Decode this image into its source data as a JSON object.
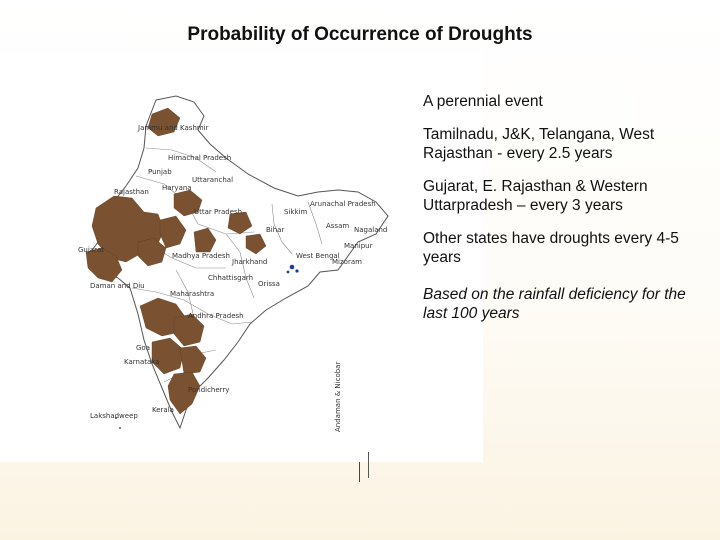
{
  "slide": {
    "title": "Probability of Occurrence of Droughts",
    "bullets": [
      "A perennial event",
      "Tamilnadu, J&K, Telangana, West Rajasthan - every 2.5 years",
      "Gujarat, E. Rajasthan &  Western Uttarpradesh – every 3 years",
      "Other states have droughts every 4-5 years"
    ],
    "note": "Based on the rainfall deficiency for the last 100 years"
  },
  "map": {
    "drought_color": "#7a5232",
    "water_color": "#1c3f8f",
    "outline_color": "#555555",
    "labels": {
      "jk": "Jammu and Kashmir",
      "hp": "Himachal Pradesh",
      "punjab": "Punjab",
      "uttaranchal": "Uttaranchal",
      "haryana": "Haryana",
      "rajasthan": "Rajasthan",
      "up": "Uttar Pradesh",
      "sikkim": "Sikkim",
      "arunachal": "Arunachal Pradesh",
      "bihar": "Bihar",
      "assam": "Assam",
      "nagaland": "Nagaland",
      "manipur": "Manipur",
      "gujarat": "Gujarat",
      "mp": "Madhya Pradesh",
      "jharkhand": "Jharkhand",
      "wb": "West Bengal",
      "mizoram": "Mizoram",
      "chhattisgarh": "Chhattisgarh",
      "orissa": "Orissa",
      "daman": "Daman and Diu",
      "maharashtra": "Maharashtra",
      "ap": "Andhra Pradesh",
      "goa": "Goa",
      "karnataka": "Karnataka",
      "pondicherry": "Pondicherry",
      "kerala": "Kerala",
      "lakshadweep": "Lakshadweep",
      "andaman": "Andaman & Nicobar"
    }
  }
}
